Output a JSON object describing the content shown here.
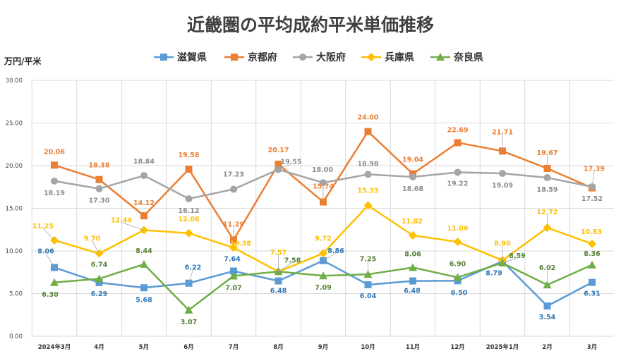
{
  "chart_data": {
    "type": "line",
    "title": "近畿圏の平均成約平米単価推移",
    "ylabel": "万円/平米",
    "xlabel": "",
    "ylim": [
      0,
      30
    ],
    "yticks": [
      "0.00",
      "5.00",
      "10.00",
      "15.00",
      "20.00",
      "25.00",
      "30.00"
    ],
    "grid": true,
    "legend_position": "top",
    "categories": [
      "2024年3月",
      "4月",
      "5月",
      "6月",
      "7月",
      "8月",
      "9月",
      "10月",
      "11月",
      "12月",
      "2025年1月",
      "2月",
      "3月"
    ],
    "series": [
      {
        "name": "滋賀県",
        "color": "#5b9bd5",
        "marker": "square",
        "values": [
          8.06,
          6.29,
          5.68,
          6.22,
          7.64,
          6.48,
          8.86,
          6.04,
          6.48,
          6.5,
          8.79,
          3.54,
          6.31
        ],
        "labels": [
          "8.06",
          "6.29",
          "5.68",
          "6.22",
          "7.64",
          "6.48",
          "8.86",
          "6.04",
          "6.48",
          "6.50",
          "8.79",
          "3.54",
          "6.31"
        ]
      },
      {
        "name": "京都府",
        "color": "#ed7d31",
        "marker": "square",
        "values": [
          20.06,
          18.38,
          14.12,
          19.58,
          11.29,
          20.17,
          15.74,
          24.0,
          19.04,
          22.69,
          21.71,
          19.67,
          17.39
        ],
        "labels": [
          "20.06",
          "18.38",
          "14.12",
          "19.58",
          "11.29",
          "20.17",
          "15.74",
          "24.00",
          "19.04",
          "22.69",
          "21.71",
          "19.67",
          "17.39"
        ]
      },
      {
        "name": "大阪府",
        "color": "#a5a5a5",
        "marker": "circle",
        "values": [
          18.19,
          17.3,
          18.84,
          16.12,
          17.23,
          19.55,
          18.0,
          18.98,
          18.68,
          19.22,
          19.09,
          18.59,
          17.52
        ],
        "labels": [
          "18.19",
          "17.30",
          "18.84",
          "16.12",
          "17.23",
          "19.55",
          "18.00",
          "18.98",
          "18.68",
          "19.22",
          "19.09",
          "18.59",
          "17.52"
        ]
      },
      {
        "name": "兵庫県",
        "color": "#ffc000",
        "marker": "diamond",
        "values": [
          11.25,
          9.7,
          12.44,
          12.08,
          10.38,
          7.57,
          9.72,
          15.33,
          11.82,
          11.06,
          8.9,
          12.72,
          10.83
        ],
        "labels": [
          "11.25",
          "9.70",
          "12.44",
          "12.08",
          "10.38",
          "7.57",
          "9.72",
          "15.33",
          "11.82",
          "11.06",
          "8.90",
          "12.72",
          "10.83"
        ]
      },
      {
        "name": "奈良県",
        "color": "#70ad47",
        "marker": "triangle",
        "values": [
          6.3,
          6.74,
          8.44,
          3.07,
          7.07,
          7.58,
          7.09,
          7.25,
          8.06,
          6.9,
          8.59,
          6.02,
          8.36
        ],
        "labels": [
          "6.30",
          "6.74",
          "8.44",
          "3.07",
          "7.07",
          "7.58",
          "7.09",
          "7.25",
          "8.06",
          "6.90",
          "8.59",
          "6.02",
          "8.36"
        ]
      }
    ]
  }
}
